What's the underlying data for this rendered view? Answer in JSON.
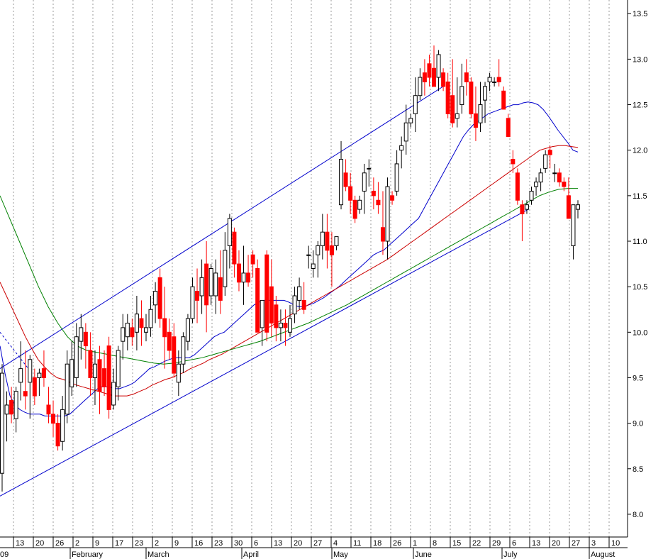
{
  "chart_data": {
    "type": "candlestick",
    "title": "",
    "y_axis": {
      "range": [
        7.75,
        13.65
      ],
      "position": "right",
      "ticks": [
        "8.0",
        "8.5",
        "9.0",
        "9.5",
        "10.0",
        "10.5",
        "11.0",
        "11.5",
        "12.0",
        "12.5",
        "13.0",
        "13.5"
      ]
    },
    "x_axis": {
      "day_labels": [
        "13",
        "20",
        "26",
        "2",
        "9",
        "17",
        "23",
        "2",
        "9",
        "16",
        "23",
        "30",
        "6",
        "13",
        "20",
        "27",
        "4",
        "11",
        "18",
        "26",
        "1",
        "8",
        "15",
        "22",
        "29",
        "6",
        "13",
        "20",
        "27",
        "3",
        "10"
      ],
      "month_labels": [
        "09",
        "February",
        "March",
        "April",
        "May",
        "June",
        "July",
        "August"
      ]
    },
    "grid": "vertical dotted lines at weekly intervals",
    "colors": {
      "up_candle": "#ffffff",
      "down_candle": "#ff0000",
      "ma_short": "#0000cc",
      "ma_medium": "#cc0000",
      "ma_long": "#008000",
      "channel": "#0000cc"
    },
    "series": [
      {
        "type": "ohlc",
        "values": [
          [
            8.45,
            9.65,
            8.25,
            9.55
          ],
          [
            9.1,
            9.35,
            8.8,
            9.2
          ],
          [
            9.25,
            9.4,
            9.0,
            9.1
          ],
          [
            9.05,
            9.4,
            8.9,
            9.35
          ],
          [
            9.45,
            9.9,
            9.25,
            9.6
          ],
          [
            9.35,
            9.8,
            9.15,
            9.3
          ],
          [
            9.45,
            9.75,
            9.05,
            9.7
          ],
          [
            9.5,
            9.6,
            9.2,
            9.3
          ],
          [
            9.5,
            9.6,
            9.3,
            9.55
          ],
          [
            9.6,
            9.8,
            9.4,
            9.5
          ],
          [
            9.2,
            9.4,
            9.0,
            9.1
          ],
          [
            9.1,
            9.25,
            8.85,
            9.0
          ],
          [
            9.0,
            9.1,
            8.7,
            8.75
          ],
          [
            8.8,
            9.3,
            8.7,
            9.15
          ],
          [
            9.1,
            9.8,
            9.0,
            9.65
          ],
          [
            9.4,
            9.9,
            9.3,
            9.7
          ],
          [
            9.5,
            10.1,
            9.4,
            9.95
          ],
          [
            9.9,
            10.2,
            9.7,
            10.05
          ],
          [
            10.0,
            10.1,
            9.6,
            9.85
          ],
          [
            9.8,
            10.0,
            9.3,
            9.5
          ],
          [
            9.5,
            9.8,
            9.2,
            9.65
          ],
          [
            9.7,
            9.85,
            9.1,
            9.35
          ],
          [
            9.6,
            9.8,
            9.3,
            9.4
          ],
          [
            9.85,
            9.95,
            9.05,
            9.15
          ],
          [
            9.2,
            9.6,
            9.15,
            9.45
          ],
          [
            9.4,
            9.85,
            9.25,
            9.8
          ],
          [
            9.9,
            10.2,
            9.7,
            10.05
          ],
          [
            9.95,
            10.2,
            9.8,
            10.1
          ],
          [
            10.05,
            10.15,
            9.85,
            9.95
          ],
          [
            10.0,
            10.4,
            9.8,
            10.2
          ],
          [
            10.15,
            10.35,
            9.85,
            10.05
          ],
          [
            10.0,
            10.2,
            9.9,
            10.05
          ],
          [
            10.05,
            10.4,
            9.95,
            10.25
          ],
          [
            10.3,
            10.55,
            10.1,
            10.45
          ],
          [
            10.6,
            10.7,
            10.05,
            10.15
          ],
          [
            10.15,
            10.5,
            9.6,
            9.95
          ],
          [
            10.0,
            10.15,
            9.7,
            9.8
          ],
          [
            9.95,
            10.1,
            9.5,
            9.55
          ],
          [
            9.45,
            9.8,
            9.3,
            9.65
          ],
          [
            9.65,
            10.0,
            9.55,
            9.95
          ],
          [
            9.9,
            10.2,
            9.8,
            10.15
          ],
          [
            10.15,
            10.6,
            10.1,
            10.5
          ],
          [
            10.45,
            10.7,
            10.1,
            10.35
          ],
          [
            10.4,
            10.8,
            10.2,
            10.6
          ],
          [
            10.75,
            11.0,
            10.0,
            10.3
          ],
          [
            10.4,
            10.75,
            10.3,
            10.7
          ],
          [
            10.4,
            10.8,
            10.2,
            10.65
          ],
          [
            10.6,
            10.9,
            10.2,
            10.35
          ],
          [
            10.5,
            11.1,
            10.4,
            10.9
          ],
          [
            10.95,
            11.3,
            10.7,
            11.25
          ],
          [
            11.1,
            11.15,
            10.6,
            10.75
          ],
          [
            10.75,
            10.9,
            10.45,
            10.55
          ],
          [
            10.55,
            10.95,
            10.3,
            10.65
          ],
          [
            10.65,
            10.85,
            10.5,
            10.55
          ],
          [
            10.85,
            10.9,
            10.6,
            10.75
          ],
          [
            10.7,
            10.8,
            10.1,
            10.0
          ],
          [
            10.05,
            10.35,
            9.85,
            10.35
          ],
          [
            10.85,
            10.9,
            9.9,
            10.0
          ],
          [
            10.5,
            10.8,
            9.95,
            10.1
          ],
          [
            10.3,
            10.4,
            9.9,
            10.05
          ],
          [
            10.05,
            10.25,
            9.9,
            10.1
          ],
          [
            10.1,
            10.25,
            9.85,
            10.05
          ],
          [
            10.0,
            10.3,
            9.95,
            10.15
          ],
          [
            10.2,
            10.5,
            10.1,
            10.4
          ],
          [
            10.35,
            10.6,
            10.25,
            10.5
          ],
          [
            10.35,
            10.55,
            10.2,
            10.25
          ],
          [
            10.85,
            10.95,
            10.7,
            10.85
          ],
          [
            10.7,
            10.9,
            10.6,
            10.75
          ],
          [
            10.85,
            11.0,
            10.6,
            10.95
          ],
          [
            10.95,
            11.3,
            10.8,
            11.1
          ],
          [
            11.1,
            11.3,
            10.7,
            10.9
          ],
          [
            10.95,
            11.1,
            10.5,
            10.85
          ],
          [
            10.95,
            11.05,
            10.9,
            11.05
          ],
          [
            11.4,
            12.1,
            11.35,
            11.9
          ],
          [
            11.75,
            11.9,
            11.55,
            11.6
          ],
          [
            11.6,
            11.75,
            11.3,
            11.45
          ],
          [
            11.45,
            11.5,
            11.2,
            11.25
          ],
          [
            11.35,
            11.5,
            11.3,
            11.45
          ],
          [
            11.55,
            11.85,
            11.3,
            11.75
          ],
          [
            11.8,
            11.9,
            11.6,
            11.8
          ],
          [
            11.55,
            11.7,
            11.35,
            11.5
          ],
          [
            11.45,
            11.65,
            11.3,
            11.4
          ],
          [
            11.15,
            11.55,
            10.85,
            11.0
          ],
          [
            11.0,
            11.7,
            10.8,
            11.6
          ],
          [
            11.5,
            11.55,
            11.4,
            11.45
          ],
          [
            11.55,
            12.0,
            11.5,
            11.85
          ],
          [
            12.0,
            12.15,
            11.8,
            12.05
          ],
          [
            12.1,
            12.5,
            11.95,
            12.3
          ],
          [
            12.3,
            12.4,
            12.25,
            12.35
          ],
          [
            12.4,
            12.8,
            12.2,
            12.6
          ],
          [
            12.6,
            12.9,
            12.55,
            12.8
          ],
          [
            12.85,
            13.0,
            12.6,
            12.75
          ],
          [
            12.95,
            13.05,
            12.7,
            12.8
          ],
          [
            12.9,
            13.15,
            12.7,
            12.7
          ],
          [
            12.8,
            13.1,
            12.65,
            13.05
          ],
          [
            12.85,
            12.9,
            12.65,
            12.7
          ],
          [
            12.75,
            12.85,
            12.35,
            12.4
          ],
          [
            12.6,
            13.0,
            12.25,
            12.3
          ],
          [
            12.35,
            12.8,
            12.25,
            12.4
          ],
          [
            12.5,
            12.95,
            12.4,
            12.7
          ],
          [
            12.85,
            13.0,
            12.6,
            12.75
          ],
          [
            12.75,
            12.8,
            12.35,
            12.4
          ],
          [
            12.4,
            12.7,
            12.1,
            12.25
          ],
          [
            12.3,
            12.75,
            12.2,
            12.5
          ],
          [
            12.55,
            12.75,
            12.3,
            12.7
          ],
          [
            12.75,
            12.85,
            12.65,
            12.8
          ],
          [
            12.75,
            12.8,
            12.7,
            12.75
          ],
          [
            12.8,
            13.0,
            12.7,
            12.75
          ],
          [
            12.65,
            12.7,
            12.45,
            12.45
          ],
          [
            12.35,
            12.4,
            12.15,
            12.15
          ],
          [
            11.9,
            12.0,
            11.75,
            11.85
          ],
          [
            11.75,
            11.8,
            11.4,
            11.45
          ],
          [
            11.4,
            11.45,
            11.0,
            11.3
          ],
          [
            11.35,
            11.45,
            11.3,
            11.4
          ],
          [
            11.45,
            11.6,
            11.4,
            11.55
          ],
          [
            11.6,
            11.7,
            11.5,
            11.65
          ],
          [
            11.65,
            11.8,
            11.55,
            11.75
          ],
          [
            11.8,
            12.0,
            11.75,
            11.95
          ],
          [
            12.0,
            12.05,
            11.8,
            11.95
          ],
          [
            11.75,
            11.85,
            11.65,
            11.75
          ],
          [
            11.75,
            11.8,
            11.6,
            11.65
          ],
          [
            11.65,
            11.7,
            11.55,
            11.6
          ],
          [
            11.5,
            11.7,
            11.3,
            11.25
          ],
          [
            10.95,
            11.4,
            10.8,
            11.4
          ],
          [
            11.35,
            11.45,
            11.25,
            11.4
          ]
        ]
      },
      {
        "type": "moving_average",
        "name": "",
        "color": "#0000cc",
        "values": [
          9.85,
          9.55,
          9.3,
          9.2,
          9.15,
          9.12,
          9.1,
          9.1,
          9.1,
          9.08,
          9.08,
          9.08,
          9.08,
          9.08,
          9.1,
          9.15,
          9.2,
          9.25,
          9.3,
          9.35,
          9.4,
          9.4,
          9.4,
          9.38,
          9.38,
          9.4,
          9.42,
          9.45,
          9.5,
          9.55,
          9.6,
          9.62,
          9.65,
          9.68,
          9.7,
          9.72,
          9.72,
          9.72,
          9.72,
          9.75,
          9.8,
          9.85,
          9.9,
          9.95,
          9.98,
          10.0,
          10.05,
          10.1,
          10.15,
          10.2,
          10.25,
          10.3,
          10.33,
          10.35,
          10.35,
          10.35,
          10.35,
          10.35,
          10.33,
          10.3,
          10.28,
          10.28,
          10.3,
          10.32,
          10.35,
          10.38,
          10.42,
          10.46,
          10.5,
          10.55,
          10.6,
          10.65,
          10.7,
          10.75,
          10.8,
          10.85,
          10.88,
          10.9,
          10.95,
          11.0,
          11.05,
          11.1,
          11.15,
          11.2,
          11.25,
          11.35,
          11.45,
          11.55,
          11.65,
          11.75,
          11.85,
          11.95,
          12.05,
          12.15,
          12.22,
          12.28,
          12.32,
          12.36,
          12.4,
          12.42,
          12.44,
          12.46,
          12.48,
          12.5,
          12.5,
          12.52,
          12.53,
          12.52,
          12.5,
          12.45,
          12.38,
          12.3,
          12.22,
          12.15,
          12.08,
          12.0,
          11.98
        ]
      },
      {
        "type": "moving_average",
        "name": "",
        "color": "#cc0000",
        "values": [
          10.55,
          10.4,
          10.25,
          10.1,
          9.95,
          9.82,
          9.7,
          9.62,
          9.55,
          9.5,
          9.48,
          9.45,
          9.42,
          9.4,
          9.38,
          9.36,
          9.34,
          9.32,
          9.3,
          9.3,
          9.3,
          9.32,
          9.35,
          9.38,
          9.42,
          9.45,
          9.48,
          9.5,
          9.53,
          9.56,
          9.6,
          9.63,
          9.66,
          9.7,
          9.73,
          9.76,
          9.8,
          9.84,
          9.88,
          9.92,
          9.96,
          10.0,
          10.04,
          10.08,
          10.12,
          10.16,
          10.2,
          10.24,
          10.28,
          10.32,
          10.36,
          10.4,
          10.44,
          10.48,
          10.52,
          10.56,
          10.6,
          10.64,
          10.68,
          10.72,
          10.76,
          10.8,
          10.85,
          10.9,
          10.95,
          11.0,
          11.05,
          11.1,
          11.15,
          11.2,
          11.25,
          11.3,
          11.35,
          11.4,
          11.45,
          11.5,
          11.55,
          11.6,
          11.65,
          11.7,
          11.75,
          11.8,
          11.85,
          11.9,
          11.95,
          12.0,
          12.02,
          12.04,
          12.05,
          12.05,
          12.04,
          12.03
        ]
      },
      {
        "type": "moving_average",
        "name": "",
        "color": "#008000",
        "values": [
          11.5,
          11.25,
          11.0,
          10.75,
          10.5,
          10.28,
          10.1,
          9.95,
          9.85,
          9.8,
          9.78,
          9.76,
          9.74,
          9.72,
          9.7,
          9.68,
          9.66,
          9.65,
          9.66,
          9.68,
          9.7,
          9.72,
          9.75,
          9.78,
          9.81,
          9.84,
          9.87,
          9.9,
          9.94,
          9.98,
          10.02,
          10.06,
          10.1,
          10.15,
          10.2,
          10.25,
          10.3,
          10.36,
          10.42,
          10.48,
          10.54,
          10.6,
          10.66,
          10.72,
          10.78,
          10.84,
          10.9,
          10.96,
          11.02,
          11.08,
          11.14,
          11.2,
          11.26,
          11.32,
          11.38,
          11.44,
          11.5,
          11.54,
          11.57,
          11.58,
          11.58
        ]
      },
      {
        "type": "trend_channel",
        "color": "#0000cc",
        "upper": [
          9.6,
          12.7
        ],
        "lower": [
          8.2,
          11.35
        ]
      }
    ]
  }
}
